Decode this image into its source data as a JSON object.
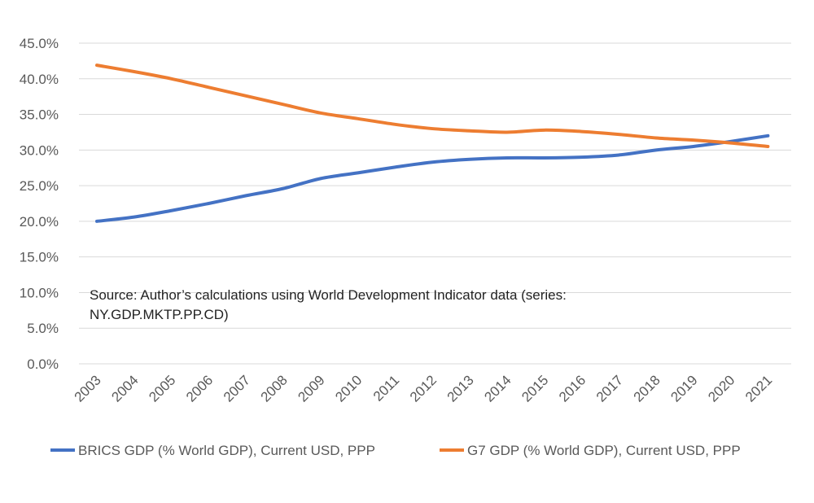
{
  "chart_data": {
    "type": "line",
    "x": [
      "2003",
      "2004",
      "2005",
      "2006",
      "2007",
      "2008",
      "2009",
      "2010",
      "2011",
      "2012",
      "2013",
      "2014",
      "2015",
      "2016",
      "2017",
      "2018",
      "2019",
      "2020",
      "2021"
    ],
    "series": [
      {
        "name": "BRICS GDP (% World GDP), Current USD, PPP",
        "color": "#4472c4",
        "values": [
          20.0,
          20.6,
          21.5,
          22.5,
          23.6,
          24.6,
          26.0,
          26.8,
          27.6,
          28.3,
          28.7,
          28.9,
          28.9,
          29.0,
          29.3,
          30.0,
          30.5,
          31.2,
          32.0
        ]
      },
      {
        "name": "G7 GDP (% World GDP), Current USD, PPP",
        "color": "#ed7d31",
        "values": [
          41.9,
          41.0,
          40.0,
          38.8,
          37.6,
          36.4,
          35.2,
          34.4,
          33.6,
          33.0,
          32.7,
          32.5,
          32.8,
          32.6,
          32.2,
          31.7,
          31.4,
          31.0,
          30.5
        ]
      }
    ],
    "yticks": [
      "0.0%",
      "5.0%",
      "10.0%",
      "15.0%",
      "20.0%",
      "25.0%",
      "30.0%",
      "35.0%",
      "40.0%",
      "45.0%"
    ],
    "ylim": [
      0,
      45
    ],
    "grid": true,
    "legend_position": "bottom",
    "annotation_lines": [
      "Source: Author’s calculations using World Development Indicator data (series:",
      "NY.GDP.MKTP.PP.CD)"
    ]
  }
}
